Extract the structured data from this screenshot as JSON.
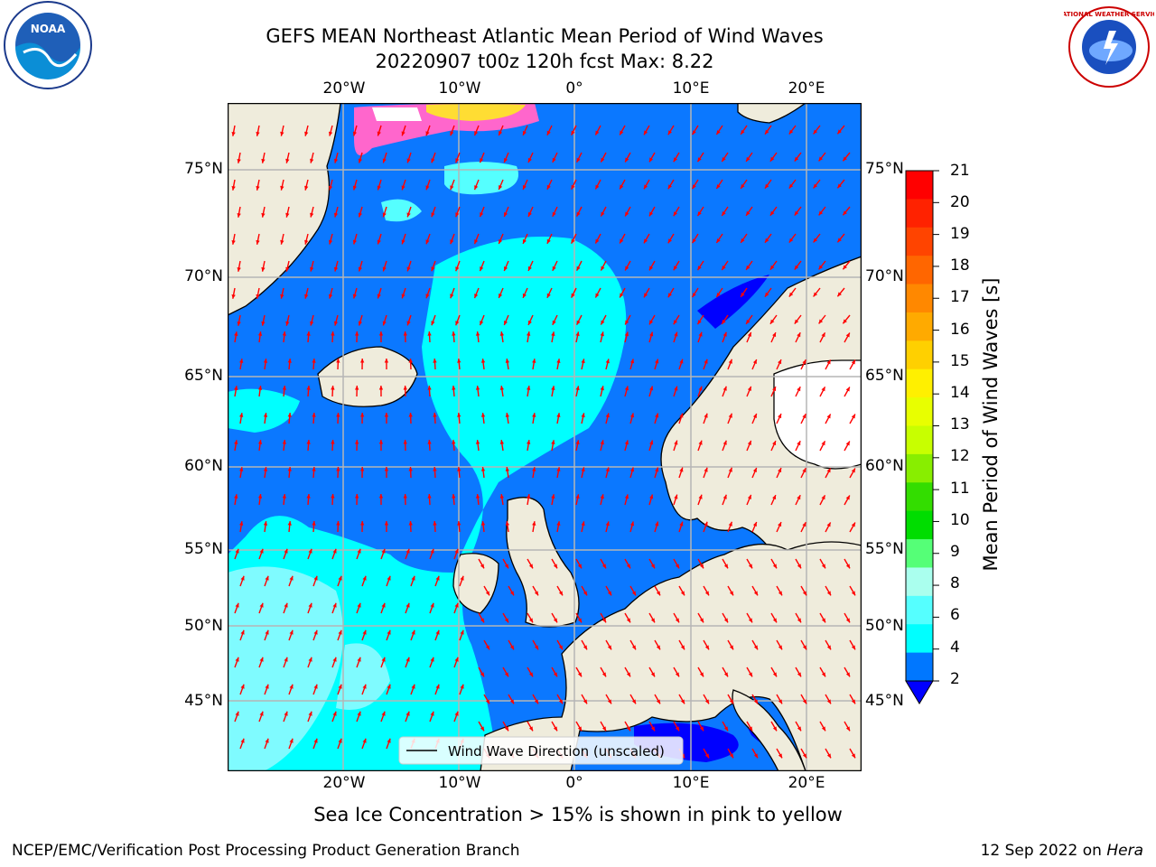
{
  "title_line1": "GEFS MEAN Northeast Atlantic Mean Period of Wind Waves",
  "title_line2": "20220907 t00z 120h fcst   Max: 8.22",
  "logos": {
    "noaa_text": "NOAA",
    "nws_text": "NATIONAL WEATHER SERVICE"
  },
  "axes": {
    "lon_top": [
      "20°W",
      "10°W",
      "0°",
      "10°E",
      "20°E"
    ],
    "lon_bottom": [
      "20°W",
      "10°W",
      "0°",
      "10°E",
      "20°E"
    ],
    "lat_left": [
      "75°N",
      "70°N",
      "65°N",
      "60°N",
      "55°N",
      "50°N",
      "45°N"
    ],
    "lat_right": [
      "75°N",
      "70°N",
      "65°N",
      "60°N",
      "55°N",
      "50°N",
      "45°N"
    ]
  },
  "legend": {
    "label": "Wind Wave Direction (unscaled)"
  },
  "colorbar": {
    "label": "Mean Period of Wind Waves [s]",
    "ticks": [
      "21",
      "20",
      "19",
      "18",
      "17",
      "16",
      "15",
      "14",
      "13",
      "12",
      "11",
      "10",
      "9",
      "8",
      "6",
      "4",
      "2"
    ],
    "colors": [
      "#ff0000",
      "#ff2200",
      "#ff4400",
      "#ff6600",
      "#ff8800",
      "#ffaa00",
      "#ffd000",
      "#fff000",
      "#e8ff00",
      "#c8ff00",
      "#88ee00",
      "#33dd00",
      "#00dd00",
      "#55ff77",
      "#aaffee",
      "#55ffff",
      "#00ffff",
      "#0077ff",
      "#0000ff"
    ]
  },
  "subtitle": "Sea Ice Concentration > 15% is shown in pink to yellow",
  "footer_left": "NCEP/EMC/Verification Post Processing Product Generation Branch",
  "footer_right_date": "12 Sep 2022 on ",
  "footer_right_host": "Hera",
  "map_colors": {
    "land": "#efecdc",
    "deep_blue": "#0b78ff",
    "cyan": "#00ffff",
    "light_cyan": "#7ffbff",
    "arrow": "#ff0000"
  }
}
